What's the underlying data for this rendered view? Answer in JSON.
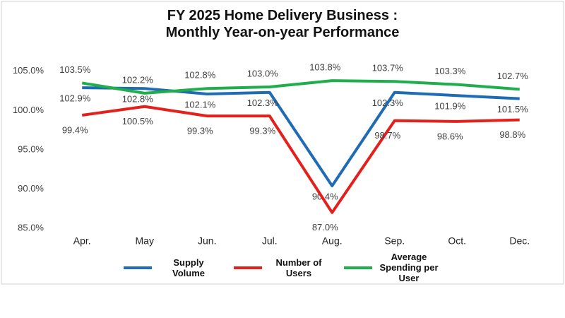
{
  "chart_data": {
    "type": "line",
    "title": "FY 2025 Home Delivery Business : Monthly Year-on-year Performance",
    "categories": [
      "Apr.",
      "May",
      "Jun.",
      "Jul.",
      "Aug.",
      "Sep.",
      "Oct.",
      "Dec."
    ],
    "series": [
      {
        "name": "Supply Volume",
        "color": "#1f6bb5",
        "values": [
          102.9,
          102.8,
          102.1,
          102.3,
          90.4,
          102.3,
          101.9,
          101.5
        ],
        "value_labels": [
          "102.9%",
          "102.8%",
          "102.1%",
          "102.3%",
          "90.4%",
          "102.3%",
          "101.9%",
          "101.5%"
        ]
      },
      {
        "name": "Number of Users",
        "color": "#e3201b",
        "values": [
          99.4,
          100.5,
          99.3,
          99.3,
          87.0,
          98.7,
          98.6,
          98.8
        ],
        "value_labels": [
          "99.4%",
          "100.5%",
          "99.3%",
          "99.3%",
          "87.0%",
          "98.7%",
          "98.6%",
          "98.8%"
        ]
      },
      {
        "name": "Average Spending per User",
        "color": "#1fae4b",
        "values": [
          103.5,
          102.2,
          102.8,
          103.0,
          103.8,
          103.7,
          103.3,
          102.7
        ],
        "value_labels": [
          "103.5%",
          "102.2%",
          "102.8%",
          "103.0%",
          "103.8%",
          "103.7%",
          "103.3%",
          "102.7%"
        ]
      }
    ],
    "ylim": [
      85,
      107.5
    ],
    "yticks": [
      {
        "value": 85,
        "label": "85.0%"
      },
      {
        "value": 90,
        "label": "90.0%"
      },
      {
        "value": 95,
        "label": "95.0%"
      },
      {
        "value": 100,
        "label": "100.0%"
      },
      {
        "value": 105,
        "label": "105.0%"
      }
    ],
    "grid": false,
    "legend": "bottom"
  }
}
